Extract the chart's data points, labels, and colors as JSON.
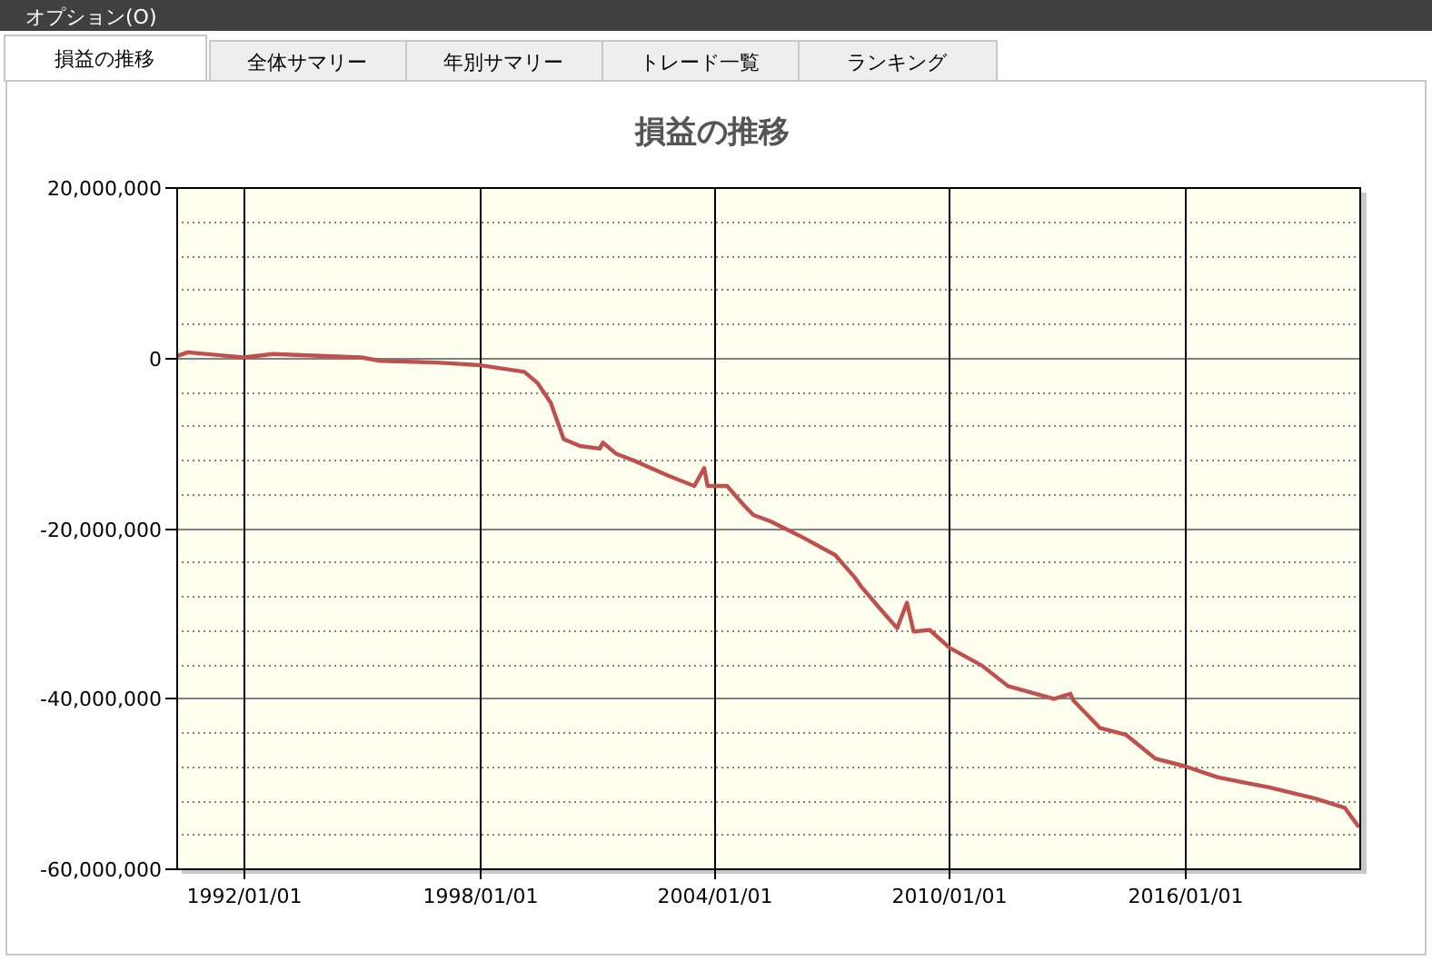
{
  "chart_data": {
    "type": "line",
    "title": "損益の推移",
    "annotations": [
      "オプション(O)",
      "損益の推移",
      "全体サマリー",
      "年別サマリー",
      "トレード一覧",
      "ランキング"
    ],
    "x": [
      "1990-05-01",
      "1990-08-01",
      "1992-01-01",
      "1992-10-01",
      "1995-01-01",
      "1995-07-01",
      "1996-12-01",
      "1998-01-01",
      "1999-03-01",
      "1999-07-01",
      "1999-11-01",
      "2000-03-01",
      "2000-08-01",
      "2001-02-01",
      "2001-03-01",
      "2001-07-01",
      "2002-01-01",
      "2002-11-01",
      "2003-07-01",
      "2003-10-01",
      "2003-11-01",
      "2004-05-01",
      "2004-10-01",
      "2005-01-01",
      "2005-06-01",
      "2006-03-01",
      "2007-02-01",
      "2007-08-01",
      "2007-10-01",
      "2008-04-01",
      "2008-09-01",
      "2008-12-01",
      "2009-02-01",
      "2009-07-01",
      "2010-01-01",
      "2010-11-01",
      "2011-07-01",
      "2012-09-01",
      "2013-02-01",
      "2013-03-01",
      "2013-11-01",
      "2014-07-01",
      "2015-04-01",
      "2016-01-01",
      "2016-11-01",
      "2017-07-01",
      "2018-03-01",
      "2019-05-01",
      "2020-02-01",
      "2020-06-01"
    ],
    "series": [
      {
        "color": "#c0504d",
        "values": [
          200000,
          600000,
          0,
          400000,
          0,
          -400000,
          -600000,
          -900000,
          -1700000,
          -3000000,
          -5300000,
          -9600000,
          -10400000,
          -10700000,
          -10000000,
          -11300000,
          -12200000,
          -13900000,
          -15100000,
          -13000000,
          -15100000,
          -15100000,
          -17300000,
          -18500000,
          -19200000,
          -20900000,
          -23200000,
          -25800000,
          -26900000,
          -29600000,
          -31800000,
          -28800000,
          -32200000,
          -32000000,
          -34100000,
          -36200000,
          -38600000,
          -40100000,
          -39500000,
          -40300000,
          -43500000,
          -44300000,
          -47100000,
          -48000000,
          -49300000,
          -49900000,
          -50500000,
          -51800000,
          -52900000,
          -55000000
        ]
      }
    ],
    "xlim": [
      "1990-04-15",
      "2020-07-01"
    ],
    "xticks": [
      {
        "value": "1992-01-01",
        "label": "1992/01/01"
      },
      {
        "value": "1998-01-01",
        "label": "1998/01/01"
      },
      {
        "value": "2004-01-01",
        "label": "2004/01/01"
      },
      {
        "value": "2010-01-01",
        "label": "2010/01/01"
      },
      {
        "value": "2016-01-01",
        "label": "2016/01/01"
      }
    ],
    "ylim": [
      -60000000,
      20000000
    ],
    "yticks": [
      {
        "value": -60000000,
        "label": "-60,000,000"
      },
      {
        "value": -40000000,
        "label": "-40,000,000"
      },
      {
        "value": -20000000,
        "label": "-20,000,000"
      },
      {
        "value": 0,
        "label": "0"
      },
      {
        "value": 20000000,
        "label": "20,000,000"
      }
    ],
    "grid": true,
    "marker": "none",
    "line_style": "solid"
  }
}
